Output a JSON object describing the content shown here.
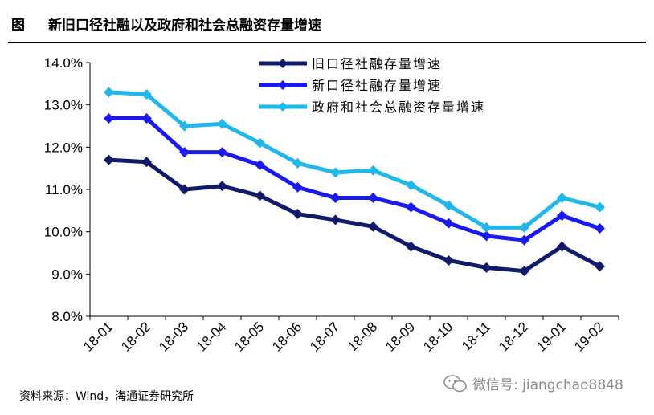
{
  "figure": {
    "label": "图",
    "title": "新旧口径社融以及政府和社会总融资存量增速",
    "source": "资料来源：Wind，海通证券研究所",
    "watermark": "微信号: jiangchao8848"
  },
  "chart_data": {
    "type": "line",
    "categories": [
      "18-01",
      "18-02",
      "18-03",
      "18-04",
      "18-05",
      "18-06",
      "18-07",
      "18-08",
      "18-09",
      "18-10",
      "18-11",
      "18-12",
      "19-01",
      "19-02"
    ],
    "ylim": [
      8.0,
      14.0
    ],
    "yticks": [
      "8.0%",
      "9.0%",
      "10.0%",
      "11.0%",
      "12.0%",
      "13.0%",
      "14.0%"
    ],
    "grid": false,
    "legend_position": "top-center",
    "series": [
      {
        "name": "旧口径社融存量增速",
        "color": "#0f1a6b",
        "values": [
          11.7,
          11.65,
          11.0,
          11.08,
          10.85,
          10.42,
          10.28,
          10.12,
          9.65,
          9.32,
          9.15,
          9.07,
          9.65,
          9.18
        ]
      },
      {
        "name": "新口径社融存量增速",
        "color": "#1a1aee",
        "values": [
          12.68,
          12.68,
          11.88,
          11.88,
          11.58,
          11.05,
          10.8,
          10.8,
          10.58,
          10.2,
          9.9,
          9.8,
          10.38,
          10.08
        ]
      },
      {
        "name": "政府和社会总融资存量增速",
        "color": "#20b8ea",
        "values": [
          13.3,
          13.25,
          12.5,
          12.55,
          12.1,
          11.62,
          11.4,
          11.45,
          11.1,
          10.62,
          10.1,
          10.1,
          10.8,
          10.58
        ]
      }
    ]
  }
}
